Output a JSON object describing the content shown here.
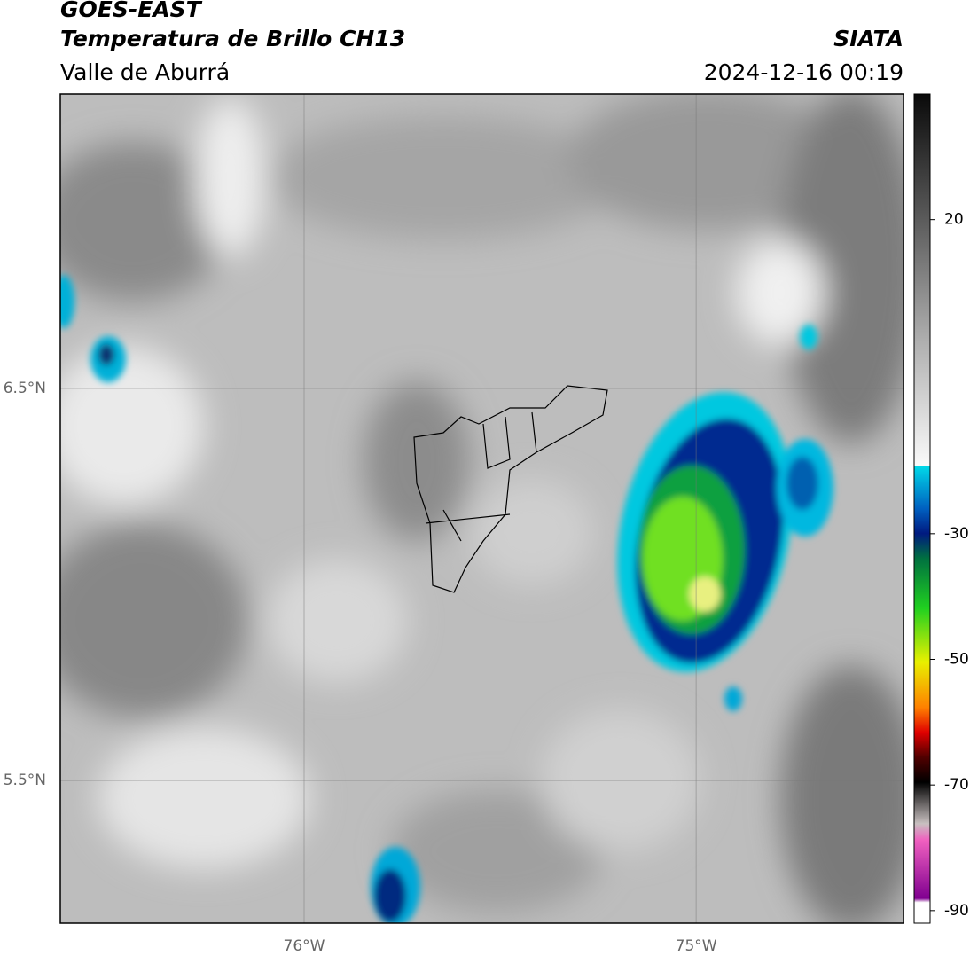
{
  "header": {
    "title": "GOES-EAST",
    "subtitle": "Temperatura de Brillo CH13",
    "region": "Valle de Aburrá",
    "source": "SIATA",
    "timestamp": "2024-12-16 00:19"
  },
  "map": {
    "lon_range": [
      -76.622,
      -74.471
    ],
    "lat_range": [
      7.251,
      5.136
    ],
    "lon_ticks": [
      {
        "value": -76,
        "label": "76°W"
      },
      {
        "value": -75,
        "label": "75°W"
      }
    ],
    "lat_ticks": [
      {
        "value": 6.5,
        "label": "6.5°N"
      },
      {
        "value": 5.5,
        "label": "5.5°N"
      }
    ]
  },
  "colorbar": {
    "range": [
      40,
      -92
    ],
    "ticks": [
      20,
      -30,
      -50,
      -70,
      -90
    ]
  }
}
